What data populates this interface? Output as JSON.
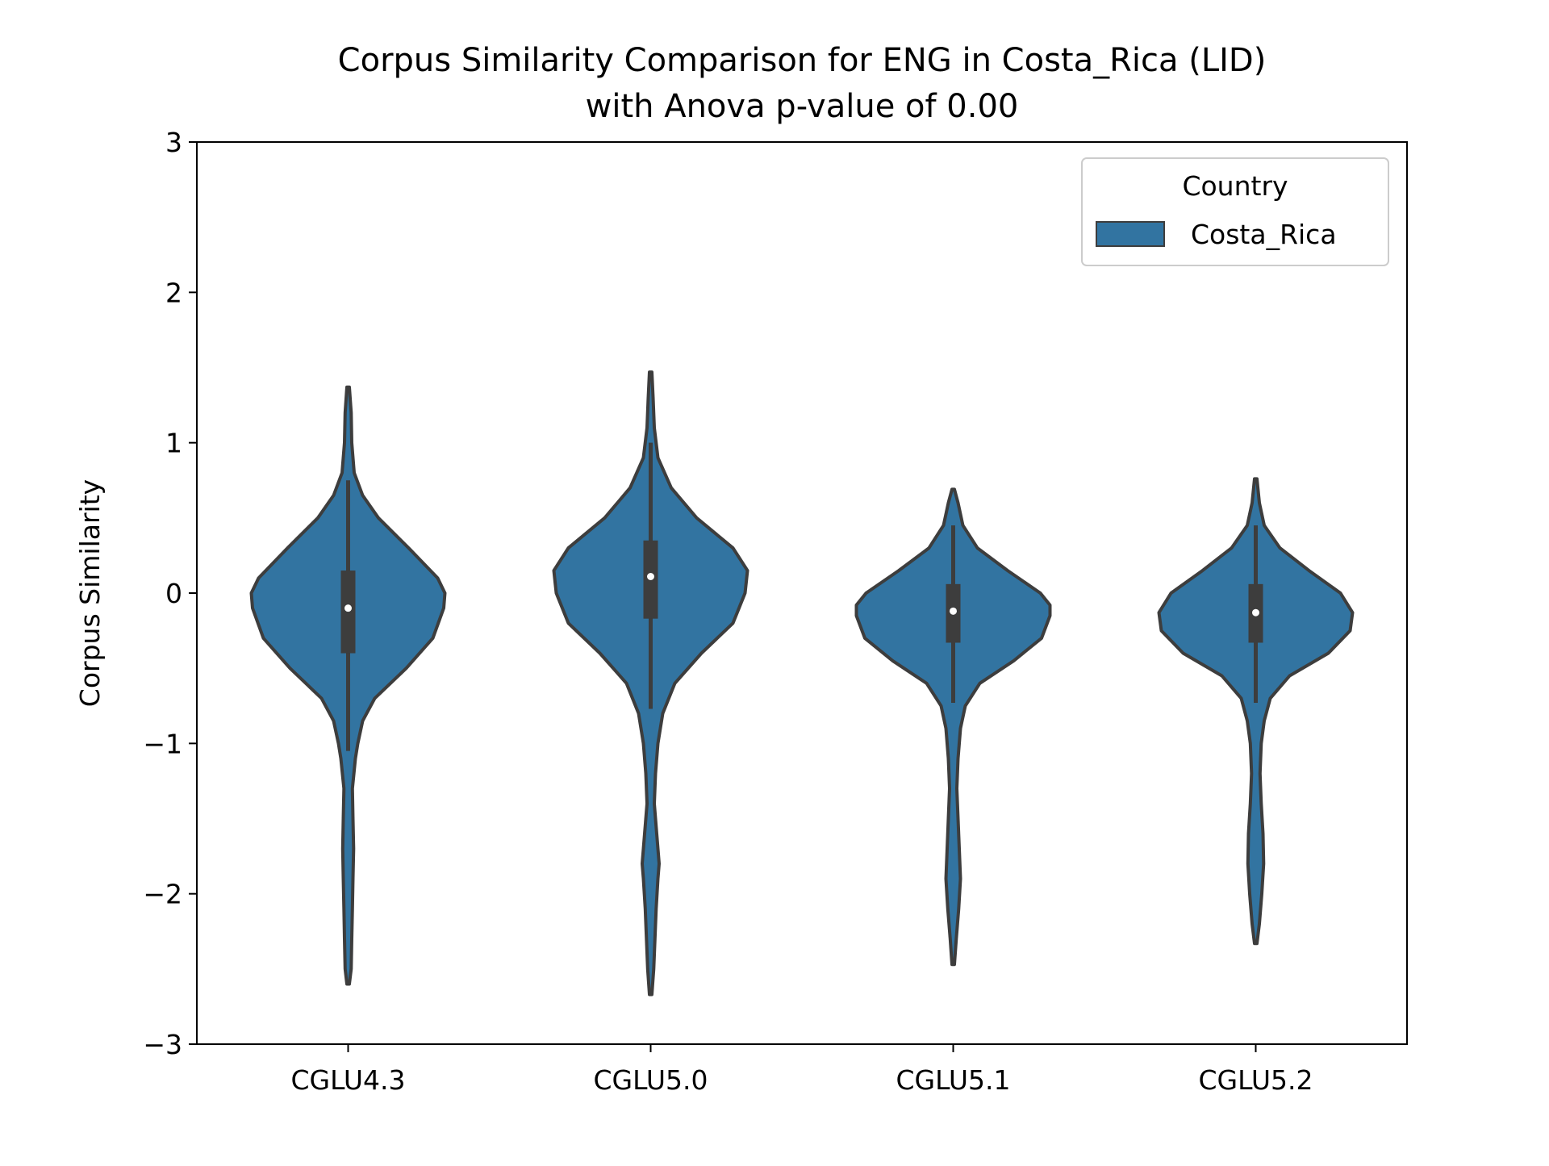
{
  "chart_data": {
    "type": "violin",
    "title": "Corpus Similarity Comparison for ENG in Costa_Rica (LID)",
    "subtitle": "with Anova p-value of 0.00",
    "xlabel": "",
    "ylabel": "Corpus Similarity",
    "categories": [
      "CGLU4.3",
      "CGLU5.0",
      "CGLU5.1",
      "CGLU5.2"
    ],
    "y_ticks": [
      -3,
      -2,
      -1,
      0,
      1,
      2,
      3
    ],
    "y_tick_labels": [
      "−3",
      "−2",
      "−1",
      "0",
      "1",
      "2",
      "3"
    ],
    "ylim": [
      -3,
      3
    ],
    "grid": false,
    "legend": {
      "title": "Country",
      "position": "top-right",
      "entries": [
        "Costa_Rica"
      ]
    },
    "colors": {
      "fill": "#3274a1",
      "edge": "#3d3d3d",
      "median": "#ffffff"
    },
    "series": [
      {
        "name": "Costa_Rica",
        "stats": [
          {
            "category": "CGLU4.3",
            "median": -0.1,
            "q1": -0.4,
            "q3": 0.15,
            "whisker_low": -1.05,
            "whisker_high": 0.75,
            "min": -2.6,
            "max": 1.37
          },
          {
            "category": "CGLU5.0",
            "median": 0.11,
            "q1": -0.17,
            "q3": 0.35,
            "whisker_low": -0.77,
            "whisker_high": 1.0,
            "min": -2.67,
            "max": 1.47
          },
          {
            "category": "CGLU5.1",
            "median": -0.12,
            "q1": -0.33,
            "q3": 0.06,
            "whisker_low": -0.73,
            "whisker_high": 0.45,
            "min": -2.47,
            "max": 0.69
          },
          {
            "category": "CGLU5.2",
            "median": -0.13,
            "q1": -0.33,
            "q3": 0.06,
            "whisker_low": -0.73,
            "whisker_high": 0.45,
            "min": -2.33,
            "max": 0.76
          }
        ],
        "density_profiles": [
          {
            "category": "CGLU4.3",
            "y": [
              -2.6,
              -2.5,
              -2.3,
              -2.1,
              -1.9,
              -1.7,
              -1.5,
              -1.3,
              -1.1,
              -1.0,
              -0.85,
              -0.7,
              -0.5,
              -0.3,
              -0.1,
              0.0,
              0.1,
              0.3,
              0.5,
              0.65,
              0.8,
              1.0,
              1.2,
              1.37
            ],
            "half_width": [
              0.01,
              0.025,
              0.03,
              0.035,
              0.04,
              0.045,
              0.04,
              0.035,
              0.06,
              0.08,
              0.12,
              0.22,
              0.48,
              0.7,
              0.79,
              0.8,
              0.74,
              0.5,
              0.25,
              0.12,
              0.05,
              0.03,
              0.025,
              0.01
            ]
          },
          {
            "category": "CGLU5.0",
            "y": [
              -2.67,
              -2.5,
              -2.3,
              -2.1,
              -1.9,
              -1.8,
              -1.6,
              -1.4,
              -1.2,
              -1.0,
              -0.8,
              -0.6,
              -0.4,
              -0.2,
              0.0,
              0.15,
              0.3,
              0.5,
              0.7,
              0.9,
              1.1,
              1.3,
              1.47
            ],
            "half_width": [
              0.01,
              0.025,
              0.035,
              0.045,
              0.06,
              0.07,
              0.05,
              0.03,
              0.04,
              0.06,
              0.1,
              0.2,
              0.42,
              0.68,
              0.78,
              0.8,
              0.68,
              0.38,
              0.17,
              0.06,
              0.03,
              0.02,
              0.01
            ]
          },
          {
            "category": "CGLU5.1",
            "y": [
              -2.47,
              -2.3,
              -2.1,
              -1.9,
              -1.7,
              -1.5,
              -1.3,
              -1.1,
              -0.9,
              -0.75,
              -0.6,
              -0.45,
              -0.3,
              -0.15,
              -0.08,
              0.0,
              0.15,
              0.3,
              0.45,
              0.6,
              0.69
            ],
            "half_width": [
              0.01,
              0.025,
              0.045,
              0.06,
              0.05,
              0.04,
              0.03,
              0.04,
              0.06,
              0.1,
              0.22,
              0.5,
              0.73,
              0.8,
              0.8,
              0.72,
              0.45,
              0.2,
              0.08,
              0.04,
              0.01
            ]
          },
          {
            "category": "CGLU5.2",
            "y": [
              -2.33,
              -2.2,
              -2.0,
              -1.8,
              -1.6,
              -1.4,
              -1.2,
              -1.0,
              -0.85,
              -0.7,
              -0.55,
              -0.4,
              -0.25,
              -0.13,
              0.0,
              0.15,
              0.3,
              0.45,
              0.6,
              0.76
            ],
            "half_width": [
              0.01,
              0.03,
              0.05,
              0.065,
              0.06,
              0.045,
              0.035,
              0.045,
              0.07,
              0.12,
              0.28,
              0.6,
              0.78,
              0.8,
              0.7,
              0.44,
              0.2,
              0.07,
              0.03,
              0.01
            ]
          }
        ]
      }
    ]
  }
}
